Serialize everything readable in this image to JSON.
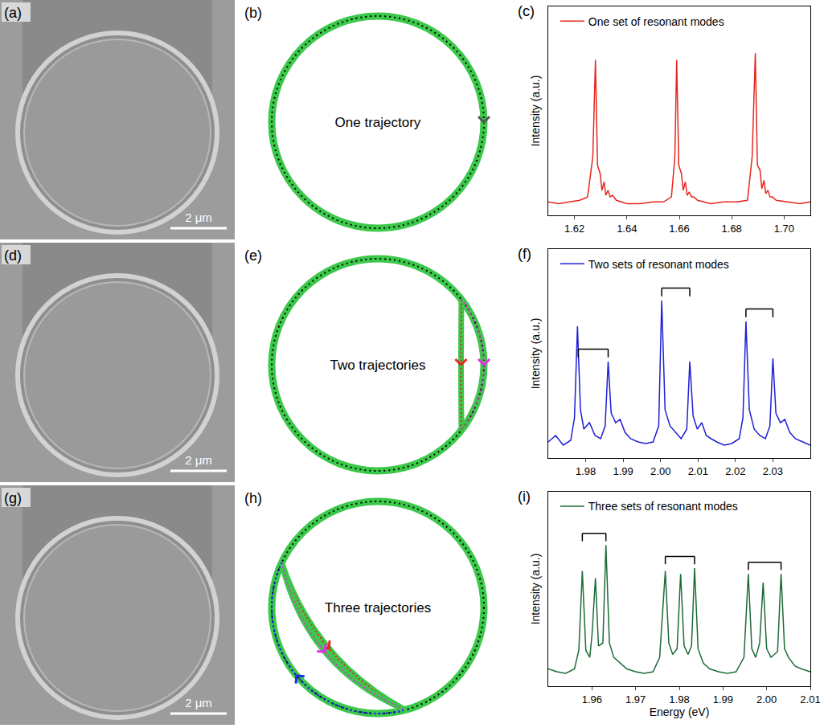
{
  "images": [
    {
      "panel": "(a)",
      "scale_bar": "2 μm"
    },
    {
      "panel": "(d)",
      "scale_bar": "2 μm"
    },
    {
      "panel": "(g)",
      "scale_bar": "2 μm"
    }
  ],
  "diagrams": [
    {
      "panel": "(b)",
      "text": "One trajectory",
      "trajectories": 1
    },
    {
      "panel": "(e)",
      "text": "Two trajectories",
      "trajectories": 2
    },
    {
      "panel": "(h)",
      "text": "Three trajectories",
      "trajectories": 3
    }
  ],
  "chart_data": [
    {
      "panel": "(c)",
      "type": "line",
      "ylabel": "Intensity (a.u.)",
      "x": [
        1.61,
        1.614,
        1.618,
        1.622,
        1.625,
        1.627,
        1.628,
        1.6288,
        1.6298,
        1.6305,
        1.6313,
        1.632,
        1.6328,
        1.6336,
        1.6345,
        1.636,
        1.64,
        1.645,
        1.65,
        1.654,
        1.657,
        1.6583,
        1.659,
        1.6598,
        1.6608,
        1.6615,
        1.6623,
        1.663,
        1.6638,
        1.6646,
        1.6655,
        1.667,
        1.672,
        1.677,
        1.682,
        1.686,
        1.6878,
        1.689,
        1.6898,
        1.6908,
        1.6915,
        1.6923,
        1.693,
        1.6938,
        1.6946,
        1.6955,
        1.697,
        1.702,
        1.706,
        1.71
      ],
      "series": [
        {
          "name": "One set of resonant modes",
          "color": "#e8261f",
          "line_style": "solid",
          "values": [
            0.08,
            0.07,
            0.08,
            0.09,
            0.11,
            0.35,
            0.93,
            0.3,
            0.25,
            0.15,
            0.2,
            0.12,
            0.15,
            0.11,
            0.12,
            0.09,
            0.07,
            0.07,
            0.08,
            0.08,
            0.11,
            0.35,
            0.93,
            0.3,
            0.25,
            0.15,
            0.2,
            0.12,
            0.14,
            0.11,
            0.11,
            0.09,
            0.07,
            0.08,
            0.08,
            0.09,
            0.35,
            0.97,
            0.3,
            0.27,
            0.16,
            0.21,
            0.13,
            0.15,
            0.11,
            0.11,
            0.09,
            0.08,
            0.07,
            0.08
          ]
        }
      ],
      "xlim": [
        1.61,
        1.71
      ],
      "xticks": [
        1.62,
        1.64,
        1.66,
        1.68,
        {
          "value": 1.7,
          "label": "1.70"
        }
      ],
      "ylim": [
        0,
        1.25
      ],
      "yticks": [],
      "tick_labels": "x",
      "grid": false,
      "legend": "top left"
    },
    {
      "panel": "(f)",
      "type": "line",
      "ylabel": "Intensity (a.u.)",
      "x": [
        1.97,
        1.972,
        1.974,
        1.976,
        1.977,
        1.9778,
        1.9786,
        1.9795,
        1.981,
        1.9825,
        1.984,
        1.9852,
        1.986,
        1.9868,
        1.988,
        1.9892,
        1.9905,
        1.992,
        1.994,
        1.996,
        1.998,
        1.9995,
        2.0003,
        2.0012,
        2.0025,
        2.004,
        2.0055,
        2.007,
        2.0078,
        2.0087,
        2.0098,
        2.011,
        2.0122,
        2.0135,
        2.015,
        2.017,
        2.019,
        2.021,
        2.022,
        2.0228,
        2.0237,
        2.025,
        2.0265,
        2.028,
        2.0292,
        2.03,
        2.0308,
        2.032,
        2.0332,
        2.0345,
        2.036,
        2.038,
        2.04
      ],
      "series": [
        {
          "name": "Two sets of resonant modes",
          "color": "#1f1fd6",
          "line_style": "solid",
          "values": [
            0.1,
            0.14,
            0.08,
            0.11,
            0.25,
            0.82,
            0.3,
            0.18,
            0.22,
            0.14,
            0.12,
            0.2,
            0.6,
            0.28,
            0.22,
            0.24,
            0.16,
            0.12,
            0.1,
            0.09,
            0.1,
            0.2,
            0.98,
            0.3,
            0.2,
            0.16,
            0.12,
            0.18,
            0.6,
            0.26,
            0.18,
            0.22,
            0.14,
            0.12,
            0.1,
            0.08,
            0.09,
            0.12,
            0.25,
            0.85,
            0.3,
            0.18,
            0.14,
            0.12,
            0.2,
            0.62,
            0.28,
            0.22,
            0.24,
            0.16,
            0.12,
            0.1,
            0.08
          ]
        }
      ],
      "brackets": [
        [
          1.978,
          1.986
        ],
        [
          2.0003,
          2.0078
        ],
        [
          2.0228,
          2.03
        ]
      ],
      "xlim": [
        1.97,
        2.04
      ],
      "xticks": [
        1.98,
        1.99,
        {
          "value": 2,
          "label": "2.00"
        },
        2.01,
        2.02,
        2.03
      ],
      "ylim": [
        0,
        1.3
      ],
      "yticks": [],
      "tick_labels": "x",
      "grid": false,
      "legend": "top left"
    },
    {
      "panel": "(i)",
      "type": "line",
      "xlabel": "Energy (eV)",
      "ylabel": "Intensity (a.u.)",
      "x": [
        1.95,
        1.952,
        1.954,
        1.956,
        1.957,
        1.9578,
        1.9586,
        1.9595,
        1.96,
        1.9608,
        1.9615,
        1.9625,
        1.9632,
        1.964,
        1.965,
        1.9665,
        1.968,
        1.97,
        1.972,
        1.974,
        1.9755,
        1.9768,
        1.9776,
        1.9785,
        1.9795,
        1.9803,
        1.9811,
        1.982,
        1.9828,
        1.9835,
        1.9843,
        1.9855,
        1.987,
        1.989,
        1.991,
        1.993,
        1.9948,
        1.9958,
        1.9966,
        1.9975,
        1.9984,
        1.9992,
        2.0,
        2.001,
        2.0025,
        2.0033,
        2.0041,
        2.005,
        2.0065,
        2.008,
        2.01
      ],
      "series": [
        {
          "name": "Three sets of resonant modes",
          "color": "#1e6b3a",
          "line_style": "solid",
          "values": [
            0.12,
            0.1,
            0.09,
            0.12,
            0.25,
            0.8,
            0.25,
            0.2,
            0.35,
            0.75,
            0.28,
            0.3,
            0.98,
            0.3,
            0.2,
            0.16,
            0.12,
            0.1,
            0.09,
            0.1,
            0.2,
            0.8,
            0.3,
            0.22,
            0.26,
            0.78,
            0.28,
            0.22,
            0.28,
            0.82,
            0.26,
            0.16,
            0.12,
            0.1,
            0.09,
            0.1,
            0.2,
            0.78,
            0.26,
            0.2,
            0.3,
            0.72,
            0.26,
            0.2,
            0.24,
            0.78,
            0.26,
            0.2,
            0.14,
            0.12,
            0.1
          ]
        }
      ],
      "brackets": [
        [
          1.9578,
          1.9632
        ],
        [
          1.9768,
          1.9835
        ],
        [
          1.9958,
          2.0033
        ]
      ],
      "xlim": [
        1.95,
        2.01
      ],
      "xticks": [
        1.96,
        1.97,
        1.98,
        1.99,
        {
          "value": 2,
          "label": "2.00"
        },
        2.01
      ],
      "ylim": [
        0,
        1.35
      ],
      "yticks": [],
      "tick_labels": "x",
      "grid": false,
      "legend": "top left"
    }
  ]
}
